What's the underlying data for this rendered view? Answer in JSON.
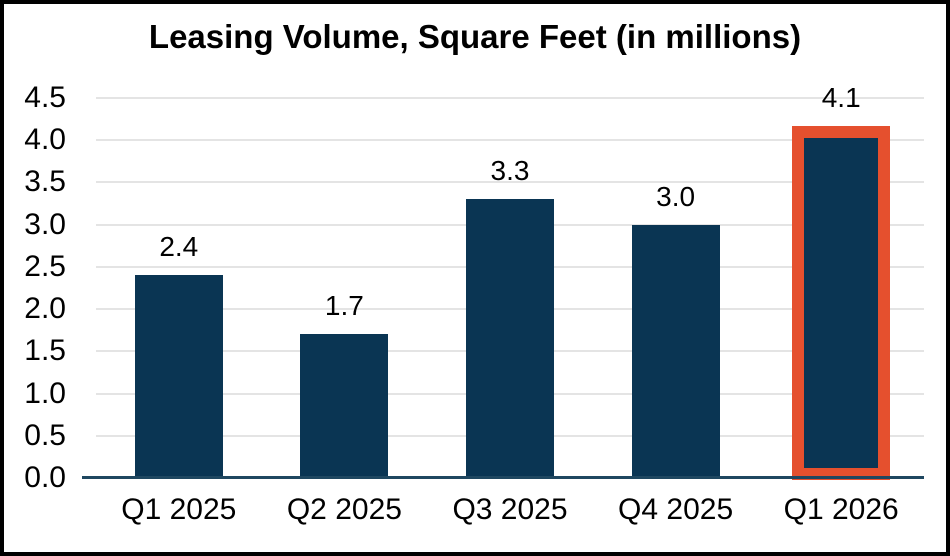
{
  "chart_data": {
    "type": "bar",
    "title": "Leasing Volume, Square Feet (in millions)",
    "categories": [
      "Q1 2025",
      "Q2 2025",
      "Q3 2025",
      "Q4 2025",
      "Q1 2026"
    ],
    "values": [
      2.4,
      1.7,
      3.3,
      3.0,
      4.1
    ],
    "data_labels": [
      "2.4",
      "1.7",
      "3.3",
      "3.0",
      "4.1"
    ],
    "ylim": [
      0,
      4.5
    ],
    "ytick_step": 0.5,
    "ytick_labels": [
      "0.0",
      "0.5",
      "1.0",
      "1.5",
      "2.0",
      "2.5",
      "3.0",
      "3.5",
      "4.0",
      "4.5"
    ],
    "grid": true,
    "legend_position": "none",
    "highlight_index": 4,
    "colors": {
      "bar": "#0A3553",
      "highlight_border": "#E5502E",
      "gridline": "#E4E4E4",
      "axis_line": "#1F4760",
      "text": "#000000",
      "frame_border": "#000000",
      "background": "#FFFFFF"
    }
  }
}
